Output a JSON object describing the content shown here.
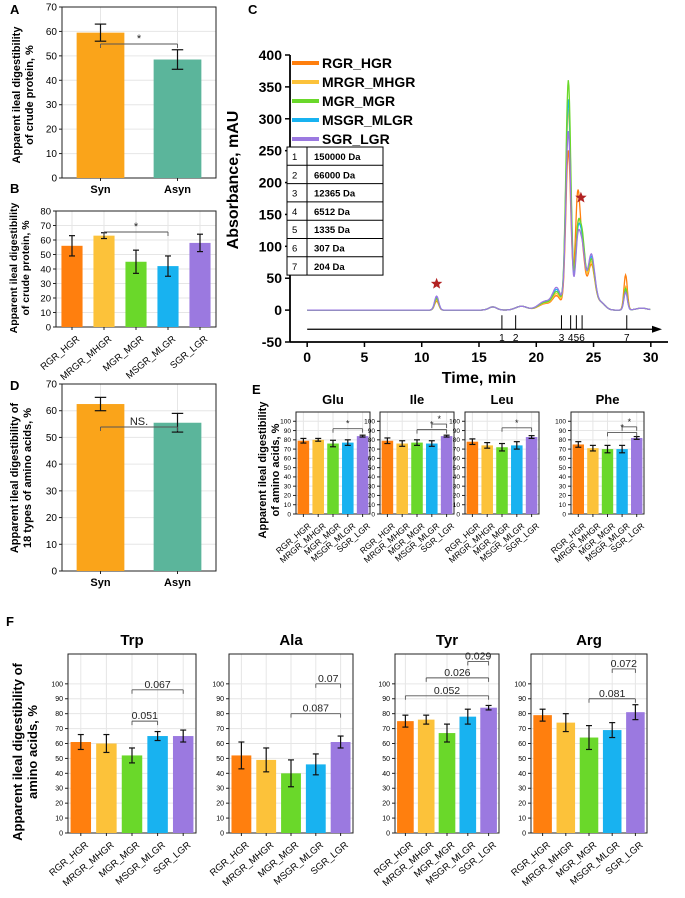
{
  "colors": {
    "rgr": "#ff7f0e",
    "mrgr": "#fcc23a",
    "mgr": "#6ad82a",
    "msgr": "#18b2f0",
    "sgr": "#9b79e0",
    "syn": "#faa41a",
    "asyn": "#5bb59b",
    "grid": "#e6e6e6",
    "star": "#b22222"
  },
  "panel_letters": {
    "A": "A",
    "B": "B",
    "C": "C",
    "D": "D",
    "E": "E",
    "F": "F"
  },
  "chart_data": [
    {
      "id": "A",
      "type": "bar",
      "title": "",
      "ylabel_lines": [
        "Apparent ileal digestibility",
        "of crude protein, %"
      ],
      "categories": [
        "Syn",
        "Asyn"
      ],
      "values": [
        59.5,
        48.5
      ],
      "errors": [
        3.5,
        4.0
      ],
      "ylim": [
        0,
        70
      ],
      "yticks": [
        0,
        10,
        20,
        30,
        40,
        50,
        60,
        70
      ],
      "significance": [
        {
          "from": 0,
          "to": 1,
          "label": "*"
        }
      ]
    },
    {
      "id": "B",
      "type": "bar",
      "ylabel_lines": [
        "Apparent ileal digestibility",
        "of crude protein, %"
      ],
      "categories": [
        "RGR_HGR",
        "MRGR_MHGR",
        "MGR_MGR",
        "MSGR_MLGR",
        "SGR_LGR"
      ],
      "values": [
        56,
        63,
        45,
        42,
        58
      ],
      "errors": [
        7,
        2,
        8,
        7,
        6
      ],
      "ylim": [
        0,
        80
      ],
      "yticks": [
        0,
        10,
        20,
        30,
        40,
        50,
        60,
        70,
        80
      ],
      "significance": [
        {
          "from": 1,
          "to": 3,
          "label": "*"
        }
      ]
    },
    {
      "id": "C",
      "type": "line",
      "xlabel": "Time, min",
      "ylabel": "Absorbance, mAU",
      "xlim": [
        -1.5,
        31.5
      ],
      "ylim": [
        -50,
        400
      ],
      "xticks": [
        0,
        5,
        10,
        15,
        20,
        25,
        30
      ],
      "yticks": [
        -50,
        0,
        50,
        100,
        150,
        200,
        250,
        300,
        350,
        400
      ],
      "series_names": [
        "RGR_HGR",
        "MRGR_MHGR",
        "MGR_MGR",
        "MSGR_MLGR",
        "SGR_LGR"
      ],
      "peak_heights": [
        250,
        315,
        360,
        330,
        280
      ],
      "mw_table": [
        {
          "n": "1",
          "mw": "150000 Da"
        },
        {
          "n": "2",
          "mw": "66000 Da"
        },
        {
          "n": "3",
          "mw": "12365 Da"
        },
        {
          "n": "4",
          "mw": "6512 Da"
        },
        {
          "n": "5",
          "mw": "1335 Da"
        },
        {
          "n": "6",
          "mw": "307 Da"
        },
        {
          "n": "7",
          "mw": "204 Da"
        }
      ],
      "markers": [
        {
          "label": "1",
          "t": 17.0
        },
        {
          "label": "2",
          "t": 18.2
        },
        {
          "label": "3",
          "t": 22.2
        },
        {
          "label": "4",
          "t": 23.0
        },
        {
          "label": "5",
          "t": 23.5
        },
        {
          "label": "6",
          "t": 24.0
        },
        {
          "label": "7",
          "t": 27.9
        }
      ],
      "stars": [
        {
          "t": 11.3,
          "y": 35
        },
        {
          "t": 23.9,
          "y": 170
        }
      ]
    },
    {
      "id": "D",
      "type": "bar",
      "ylabel_lines": [
        "Apparent ileal digestibility of",
        "18 types of amino acids, %"
      ],
      "categories": [
        "Syn",
        "Asyn"
      ],
      "values": [
        62.5,
        55.5
      ],
      "errors": [
        2.5,
        3.5
      ],
      "ylim": [
        0,
        70
      ],
      "yticks": [
        0,
        10,
        20,
        30,
        40,
        50,
        60,
        70
      ],
      "significance": [
        {
          "from": 0,
          "to": 1,
          "label": "NS."
        }
      ]
    },
    {
      "id": "E",
      "type": "bar",
      "ylabel_lines": [
        "Apparent ileal digestibility",
        "of amino acids, %"
      ],
      "categories": [
        "RGR_HGR",
        "MRGR_MHGR",
        "MGR_MGR",
        "MSGR_MLGR",
        "SGR_LGR"
      ],
      "subplots": [
        {
          "name": "Glu",
          "values": [
            79,
            80,
            76,
            77,
            84
          ],
          "errors": [
            2.5,
            1.5,
            3.5,
            3,
            1
          ],
          "ylim": [
            0,
            110
          ],
          "yticks": [
            0,
            10,
            20,
            30,
            40,
            50,
            60,
            70,
            80,
            90,
            100
          ],
          "significance": [
            {
              "from": 2,
              "to": 4,
              "label": "*",
              "y": 92
            }
          ]
        },
        {
          "name": "Ile",
          "values": [
            79,
            76,
            77,
            76,
            84
          ],
          "errors": [
            3,
            3,
            3,
            3,
            1
          ],
          "ylim": [
            0,
            110
          ],
          "yticks": [
            0,
            10,
            20,
            30,
            40,
            50,
            60,
            70,
            80,
            90,
            100
          ],
          "significance": [
            {
              "from": 3,
              "to": 4,
              "label": "*",
              "y": 97
            },
            {
              "from": 2,
              "to": 4,
              "label": "*",
              "y": 91
            }
          ]
        },
        {
          "name": "Leu",
          "values": [
            78,
            74,
            72,
            74,
            83
          ],
          "errors": [
            3,
            3,
            4,
            4,
            1.5
          ],
          "ylim": [
            0,
            110
          ],
          "yticks": [
            0,
            10,
            20,
            30,
            40,
            50,
            60,
            70,
            80,
            90,
            100
          ],
          "significance": [
            {
              "from": 2,
              "to": 4,
              "label": "*",
              "y": 93
            }
          ]
        },
        {
          "name": "Phe",
          "values": [
            75,
            71,
            70,
            70,
            82
          ],
          "errors": [
            3,
            3,
            4,
            4,
            1.5
          ],
          "ylim": [
            0,
            110
          ],
          "yticks": [
            0,
            10,
            20,
            30,
            40,
            50,
            60,
            70,
            80,
            90,
            100
          ],
          "significance": [
            {
              "from": 3,
              "to": 4,
              "label": "*",
              "y": 94
            },
            {
              "from": 2,
              "to": 4,
              "label": "*",
              "y": 88
            }
          ]
        }
      ]
    },
    {
      "id": "F",
      "type": "bar",
      "ylabel_lines": [
        "Apparent ileal digestibility of",
        "amino acids, %"
      ],
      "categories": [
        "RGR_HGR",
        "MRGR_MHGR",
        "MGR_MGR",
        "MSGR_MLGR",
        "SGR_LGR"
      ],
      "subplots": [
        {
          "name": "Trp",
          "values": [
            61,
            60,
            52,
            65,
            65
          ],
          "errors": [
            5,
            6,
            5,
            3,
            4
          ],
          "ylim": [
            0,
            120
          ],
          "yticks": [
            0,
            10,
            20,
            30,
            40,
            50,
            60,
            70,
            80,
            90,
            100
          ],
          "significance": [
            {
              "from": 2,
              "to": 4,
              "label": "0.067",
              "y": 96
            },
            {
              "from": 2,
              "to": 3,
              "label": "0.051",
              "y": 75
            }
          ]
        },
        {
          "name": "Ala",
          "values": [
            52,
            49,
            40,
            46,
            61
          ],
          "errors": [
            9,
            8,
            9,
            7,
            4
          ],
          "ylim": [
            0,
            120
          ],
          "yticks": [
            0,
            10,
            20,
            30,
            40,
            50,
            60,
            70,
            80,
            90,
            100
          ],
          "significance": [
            {
              "from": 3,
              "to": 4,
              "label": "0.07",
              "y": 100
            },
            {
              "from": 2,
              "to": 4,
              "label": "0.087",
              "y": 80
            }
          ]
        },
        {
          "name": "Tyr",
          "values": [
            75,
            76,
            67,
            78,
            84
          ],
          "errors": [
            4,
            3,
            6,
            5,
            1.5
          ],
          "ylim": [
            0,
            120
          ],
          "yticks": [
            0,
            10,
            20,
            30,
            40,
            50,
            60,
            70,
            80,
            90,
            100
          ],
          "significance": [
            {
              "from": 3,
              "to": 4,
              "label": "0.029",
              "y": 115
            },
            {
              "from": 1,
              "to": 4,
              "label": "0.026",
              "y": 104
            },
            {
              "from": 0,
              "to": 4,
              "label": "0.052",
              "y": 92
            }
          ]
        },
        {
          "name": "Arg",
          "values": [
            79,
            74,
            64,
            69,
            81
          ],
          "errors": [
            4,
            6,
            8,
            5,
            5
          ],
          "ylim": [
            0,
            120
          ],
          "yticks": [
            0,
            10,
            20,
            30,
            40,
            50,
            60,
            70,
            80,
            90,
            100
          ],
          "significance": [
            {
              "from": 3,
              "to": 4,
              "label": "0.072",
              "y": 110
            },
            {
              "from": 2,
              "to": 4,
              "label": "0.081",
              "y": 90
            }
          ]
        }
      ]
    }
  ]
}
